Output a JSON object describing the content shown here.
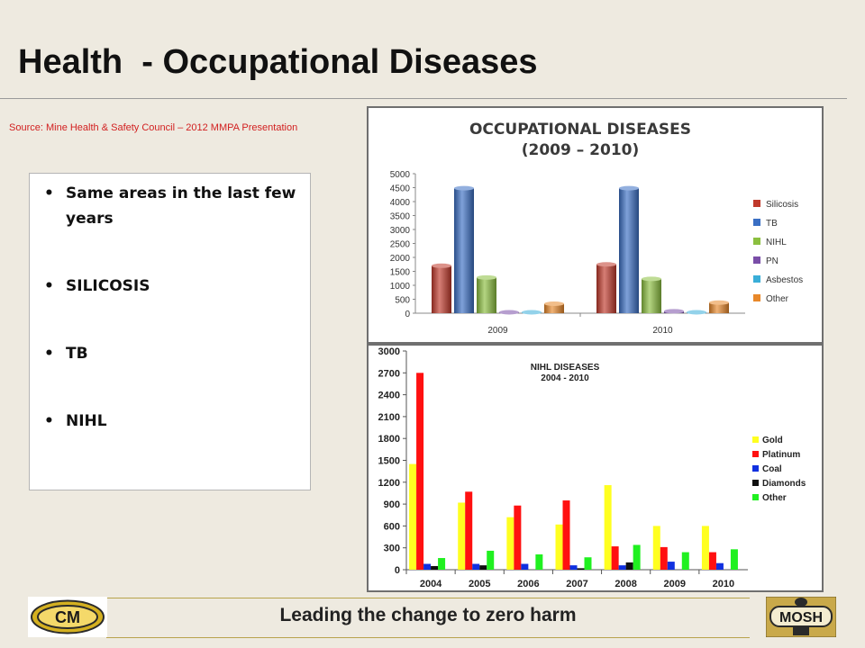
{
  "title": "Health  - Occupational Diseases",
  "source": "Source: Mine Health & Safety Council – 2012 MMPA Presentation",
  "bullets": [
    "Same areas in the last few years",
    "SILICOSIS",
    "TB",
    "NIHL"
  ],
  "footer": {
    "tagline": "Leading the change to zero harm",
    "left_logo_text": "CM",
    "right_logo_text": "MOSH"
  },
  "chart_data": [
    {
      "type": "bar",
      "title": "OCCUPATIONAL DISEASES",
      "subtitle": "(2009 – 2010)",
      "categories": [
        "2009",
        "2010"
      ],
      "ylim": [
        0,
        5000
      ],
      "yticks": [
        0,
        500,
        1000,
        1500,
        2000,
        2500,
        3000,
        3500,
        4000,
        4500,
        5000
      ],
      "grid": false,
      "legend": "right",
      "series": [
        {
          "name": "Silicosis",
          "color": "#c0392b",
          "values": [
            1700,
            1750
          ]
        },
        {
          "name": "TB",
          "color": "#3a6fc4",
          "values": [
            4480,
            4480
          ]
        },
        {
          "name": "NIHL",
          "color": "#8bbf3f",
          "values": [
            1280,
            1230
          ]
        },
        {
          "name": "PN",
          "color": "#7a4ea8",
          "values": [
            0,
            70
          ]
        },
        {
          "name": "Asbestos",
          "color": "#3aaed8",
          "values": [
            20,
            15
          ]
        },
        {
          "name": "Other",
          "color": "#e8882a",
          "values": [
            340,
            380
          ]
        }
      ]
    },
    {
      "type": "bar",
      "title": "NIHL DISEASES",
      "subtitle": "2004 - 2010",
      "categories": [
        "2004",
        "2005",
        "2006",
        "2007",
        "2008",
        "2009",
        "2010"
      ],
      "ylim": [
        0,
        3000
      ],
      "yticks": [
        0,
        300,
        600,
        900,
        1200,
        1500,
        1800,
        2100,
        2400,
        2700,
        3000
      ],
      "grid": false,
      "legend": "right",
      "series": [
        {
          "name": "Gold",
          "color": "#ffff20",
          "values": [
            1450,
            920,
            720,
            620,
            1160,
            600,
            600
          ]
        },
        {
          "name": "Platinum",
          "color": "#ff1010",
          "values": [
            2700,
            1070,
            880,
            950,
            320,
            310,
            240
          ]
        },
        {
          "name": "Coal",
          "color": "#1030e0",
          "values": [
            80,
            80,
            80,
            60,
            60,
            110,
            90
          ]
        },
        {
          "name": "Diamonds",
          "color": "#101010",
          "values": [
            50,
            60,
            0,
            20,
            100,
            0,
            0
          ]
        },
        {
          "name": "Other",
          "color": "#20f020",
          "values": [
            160,
            260,
            210,
            170,
            340,
            240,
            280
          ]
        }
      ]
    }
  ]
}
